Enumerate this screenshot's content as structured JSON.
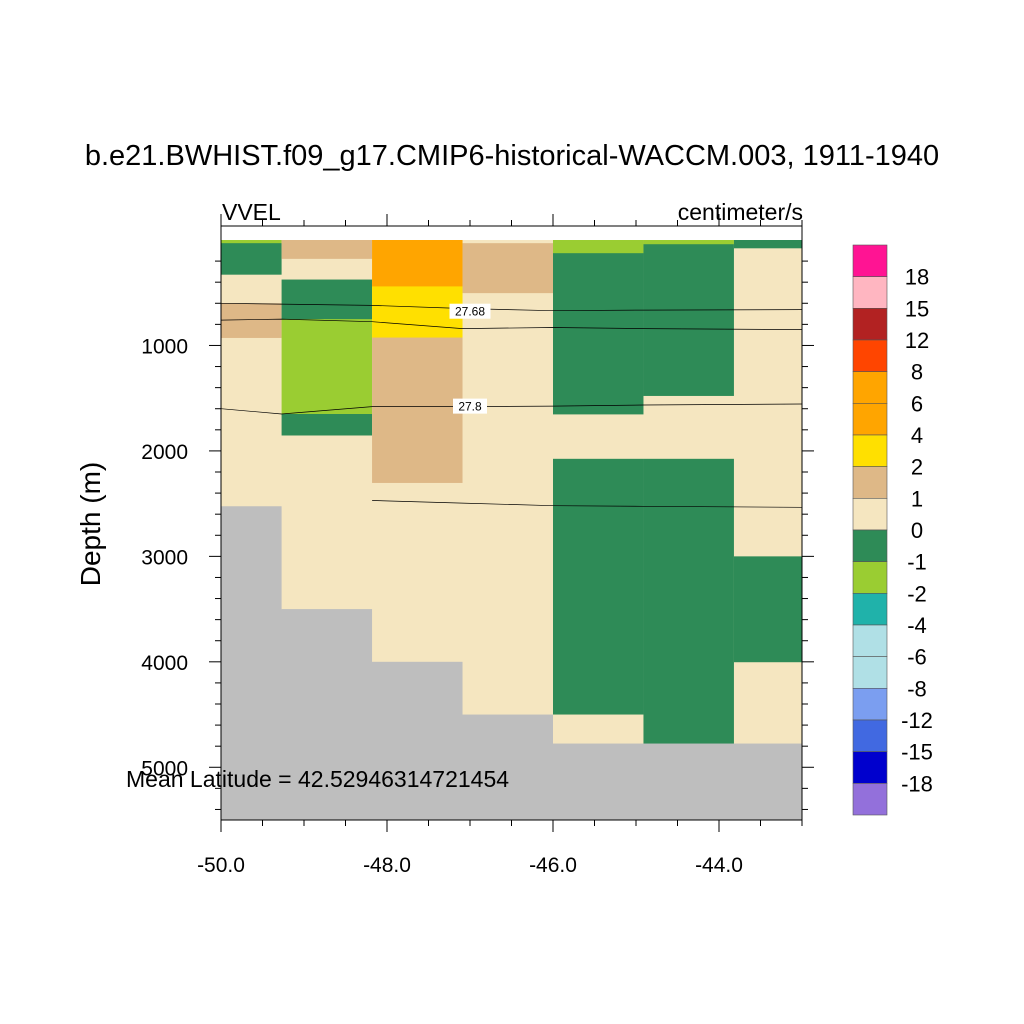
{
  "chart_data": {
    "type": "heatmap",
    "title": "b.e21.BWHIST.f09_g17.CMIP6-historical-WACCM.003, 1911-1940",
    "left_string": "VVEL",
    "right_string": "centimeter/s",
    "ylabel": "Depth (m)",
    "xlabel": "",
    "xlim": [
      -50.0,
      -43.0
    ],
    "ylim": [
      0,
      5500
    ],
    "y_reversed": true,
    "x_ticks": [
      -50.0,
      -48.0,
      -46.0,
      -44.0
    ],
    "x_tick_labels": [
      "-50.0",
      "-48.0",
      "-46.0",
      "-44.0"
    ],
    "y_ticks": [
      1000,
      2000,
      3000,
      4000,
      5000
    ],
    "y_tick_labels": [
      "1000",
      "2000",
      "3000",
      "4000",
      "5000"
    ],
    "annotation": "Mean Latitude = 42.52946314721454",
    "colorbar": {
      "levels": [
        "18",
        "15",
        "12",
        "8",
        "6",
        "4",
        "2",
        "1",
        "0",
        "-1",
        "-2",
        "-4",
        "-6",
        "-8",
        "-12",
        "-15",
        "-18"
      ],
      "colors": [
        "#ff1493",
        "#ffb6c1",
        "#b22222",
        "#ff4500",
        "#ffa500",
        "#ffa500",
        "#ffe000",
        "#deb887",
        "#f5e6c0",
        "#2e8b57",
        "#9acd32",
        "#20b2aa",
        "#b0e0e6",
        "#b0e0e6",
        "#7b9ef0",
        "#4169e1",
        "#0000cd",
        "#9370db"
      ]
    },
    "land_color": "#bebebe",
    "columns_x_edges": [
      -50.0,
      -49.27,
      -48.18,
      -47.09,
      -46.0,
      -44.91,
      -43.82,
      -43.0
    ],
    "cells": [
      {
        "x0": -50.0,
        "x1": -49.27,
        "y0": 0,
        "y1": 2525,
        "color": "#f5e6c0"
      },
      {
        "x0": -50.0,
        "x1": -49.27,
        "y0": 0,
        "y1": 30,
        "color": "#9acd32"
      },
      {
        "x0": -50.0,
        "x1": -49.27,
        "y0": 30,
        "y1": 325,
        "color": "#2e8b57"
      },
      {
        "x0": -50.0,
        "x1": -49.27,
        "y0": 600,
        "y1": 925,
        "color": "#deb887"
      },
      {
        "x0": -50.0,
        "x1": -49.27,
        "y0": 2525,
        "y1": 5500,
        "color": "#bebebe"
      },
      {
        "x0": -49.27,
        "x1": -48.18,
        "y0": 0,
        "y1": 3500,
        "color": "#f5e6c0"
      },
      {
        "x0": -49.27,
        "x1": -48.18,
        "y0": 0,
        "y1": 175,
        "color": "#deb887"
      },
      {
        "x0": -49.27,
        "x1": -48.18,
        "y0": 375,
        "y1": 750,
        "color": "#2e8b57"
      },
      {
        "x0": -49.27,
        "x1": -48.18,
        "y0": 750,
        "y1": 1650,
        "color": "#9acd32"
      },
      {
        "x0": -49.27,
        "x1": -48.18,
        "y0": 1650,
        "y1": 1850,
        "color": "#2e8b57"
      },
      {
        "x0": -49.27,
        "x1": -48.18,
        "y0": 3500,
        "y1": 5500,
        "color": "#bebebe"
      },
      {
        "x0": -48.18,
        "x1": -47.09,
        "y0": 0,
        "y1": 4000,
        "color": "#f5e6c0"
      },
      {
        "x0": -48.18,
        "x1": -47.09,
        "y0": 0,
        "y1": 440,
        "color": "#ffa500"
      },
      {
        "x0": -48.18,
        "x1": -47.09,
        "y0": 440,
        "y1": 925,
        "color": "#ffe000"
      },
      {
        "x0": -48.18,
        "x1": -47.09,
        "y0": 925,
        "y1": 2300,
        "color": "#deb887"
      },
      {
        "x0": -48.18,
        "x1": -47.09,
        "y0": 4000,
        "y1": 5500,
        "color": "#bebebe"
      },
      {
        "x0": -47.09,
        "x1": -46.0,
        "y0": 0,
        "y1": 4500,
        "color": "#f5e6c0"
      },
      {
        "x0": -47.09,
        "x1": -46.0,
        "y0": 30,
        "y1": 500,
        "color": "#deb887"
      },
      {
        "x0": -47.09,
        "x1": -46.0,
        "y0": 4500,
        "y1": 5500,
        "color": "#bebebe"
      },
      {
        "x0": -46.0,
        "x1": -44.91,
        "y0": 0,
        "y1": 4500,
        "color": "#f5e6c0"
      },
      {
        "x0": -46.0,
        "x1": -44.91,
        "y0": 0,
        "y1": 125,
        "color": "#9acd32"
      },
      {
        "x0": -46.0,
        "x1": -44.91,
        "y0": 125,
        "y1": 1650,
        "color": "#2e8b57"
      },
      {
        "x0": -46.0,
        "x1": -44.91,
        "y0": 2075,
        "y1": 4500,
        "color": "#2e8b57"
      },
      {
        "x0": -46.0,
        "x1": -44.91,
        "y0": 4500,
        "y1": 4775,
        "color": "#f5e6c0"
      },
      {
        "x0": -46.0,
        "x1": -44.91,
        "y0": 4775,
        "y1": 5500,
        "color": "#bebebe"
      },
      {
        "x0": -44.91,
        "x1": -43.82,
        "y0": 0,
        "y1": 4775,
        "color": "#f5e6c0"
      },
      {
        "x0": -44.91,
        "x1": -43.82,
        "y0": 0,
        "y1": 40,
        "color": "#9acd32"
      },
      {
        "x0": -44.91,
        "x1": -43.82,
        "y0": 40,
        "y1": 1475,
        "color": "#2e8b57"
      },
      {
        "x0": -44.91,
        "x1": -43.82,
        "y0": 2075,
        "y1": 4775,
        "color": "#2e8b57"
      },
      {
        "x0": -44.91,
        "x1": -43.82,
        "y0": 4775,
        "y1": 5500,
        "color": "#bebebe"
      },
      {
        "x0": -43.82,
        "x1": -43.0,
        "y0": 0,
        "y1": 4775,
        "color": "#f5e6c0"
      },
      {
        "x0": -43.82,
        "x1": -43.0,
        "y0": 0,
        "y1": 75,
        "color": "#2e8b57"
      },
      {
        "x0": -43.82,
        "x1": -43.0,
        "y0": 3000,
        "y1": 4000,
        "color": "#2e8b57"
      },
      {
        "x0": -43.82,
        "x1": -43.0,
        "y0": 4775,
        "y1": 5500,
        "color": "#bebebe"
      }
    ],
    "contours": [
      {
        "label": "27.68",
        "label_at": [
          -47.0,
          680
        ],
        "points": [
          [
            -50.0,
            600
          ],
          [
            -48.18,
            620
          ],
          [
            -47.09,
            650
          ],
          [
            -46.0,
            670
          ],
          [
            -44.91,
            665
          ],
          [
            -43.0,
            660
          ]
        ]
      },
      {
        "label": "",
        "points": [
          [
            -50.0,
            760
          ],
          [
            -49.27,
            750
          ],
          [
            -48.18,
            775
          ],
          [
            -47.09,
            840
          ],
          [
            -46.0,
            830
          ],
          [
            -44.91,
            840
          ],
          [
            -43.0,
            850
          ]
        ]
      },
      {
        "label": "27.8",
        "label_at": [
          -47.0,
          1580
        ],
        "points": [
          [
            -50.0,
            1600
          ],
          [
            -49.27,
            1650
          ],
          [
            -48.18,
            1580
          ],
          [
            -47.09,
            1580
          ],
          [
            -46.0,
            1575
          ],
          [
            -44.91,
            1565
          ],
          [
            -43.0,
            1555
          ]
        ]
      },
      {
        "label": "",
        "points": [
          [
            -48.18,
            2470
          ],
          [
            -47.09,
            2495
          ],
          [
            -46.0,
            2520
          ],
          [
            -44.91,
            2525
          ],
          [
            -43.0,
            2535
          ]
        ]
      }
    ]
  }
}
